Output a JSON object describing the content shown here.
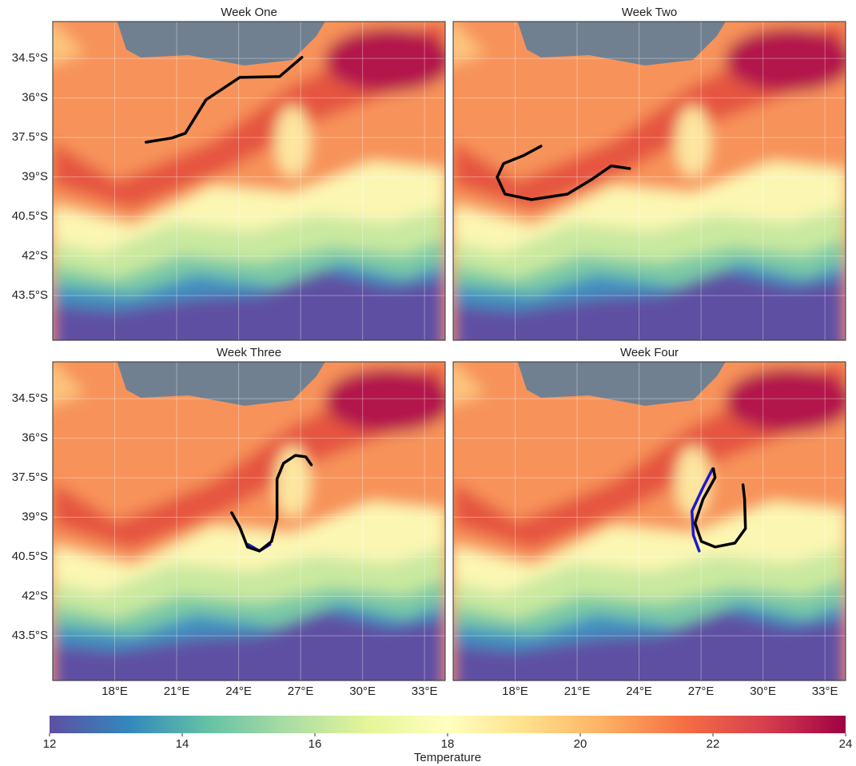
{
  "chart_data": [
    {
      "type": "map",
      "title": "Week One",
      "xlim": [
        15,
        34
      ],
      "ylim": [
        -45.2,
        -33.1
      ],
      "grid": true,
      "xtick_labels": false,
      "ytick_labels": true,
      "xticks": [
        {
          "value": 18,
          "label": "18°E"
        },
        {
          "value": 21,
          "label": "21°E"
        },
        {
          "value": 24,
          "label": "24°E"
        },
        {
          "value": 27,
          "label": "27°E"
        },
        {
          "value": 30,
          "label": "30°E"
        },
        {
          "value": 33,
          "label": "33°E"
        }
      ],
      "yticks": [
        {
          "value": -34.5,
          "label": "34.5°S"
        },
        {
          "value": -36,
          "label": "36°S"
        },
        {
          "value": -37.5,
          "label": "37.5°S"
        },
        {
          "value": -39,
          "label": "39°S"
        },
        {
          "value": -40.5,
          "label": "40.5°S"
        },
        {
          "value": -42,
          "label": "42°S"
        },
        {
          "value": -43.5,
          "label": "43.5°S"
        }
      ],
      "tracks": [
        {
          "color": "#000000",
          "x": [
            19.52,
            20.76,
            21.42,
            22.42,
            24.05,
            25.98,
            27.06
          ],
          "y": [
            -37.68,
            -37.52,
            -37.34,
            -36.07,
            -35.22,
            -35.19,
            -34.46
          ]
        }
      ]
    },
    {
      "type": "map",
      "title": "Week Two",
      "xlim": [
        15,
        34
      ],
      "ylim": [
        -45.2,
        -33.1
      ],
      "grid": true,
      "xtick_labels": false,
      "ytick_labels": false,
      "xticks": [
        {
          "value": 18,
          "label": "18°E"
        },
        {
          "value": 21,
          "label": "21°E"
        },
        {
          "value": 24,
          "label": "24°E"
        },
        {
          "value": 27,
          "label": "27°E"
        },
        {
          "value": 30,
          "label": "30°E"
        },
        {
          "value": 33,
          "label": "33°E"
        }
      ],
      "yticks": [
        {
          "value": -34.5,
          "label": "34.5°S"
        },
        {
          "value": -36,
          "label": "36°S"
        },
        {
          "value": -37.5,
          "label": "37.5°S"
        },
        {
          "value": -39,
          "label": "39°S"
        },
        {
          "value": -40.5,
          "label": "40.5°S"
        },
        {
          "value": -42,
          "label": "42°S"
        },
        {
          "value": -43.5,
          "label": "43.5°S"
        }
      ],
      "tracks": [
        {
          "color": "#000000",
          "x": [
            19.25,
            18.4,
            17.44,
            17.13,
            17.51,
            18.79,
            20.53,
            21.69,
            22.65,
            23.54
          ],
          "y": [
            -37.83,
            -38.19,
            -38.49,
            -39.01,
            -39.65,
            -39.86,
            -39.65,
            -39.1,
            -38.58,
            -38.68
          ]
        }
      ]
    },
    {
      "type": "map",
      "title": "Week Three",
      "xlim": [
        15,
        34
      ],
      "ylim": [
        -45.2,
        -33.1
      ],
      "grid": true,
      "xtick_labels": true,
      "ytick_labels": true,
      "xticks": [
        {
          "value": 18,
          "label": "18°E"
        },
        {
          "value": 21,
          "label": "21°E"
        },
        {
          "value": 24,
          "label": "24°E"
        },
        {
          "value": 27,
          "label": "27°E"
        },
        {
          "value": 30,
          "label": "30°E"
        },
        {
          "value": 33,
          "label": "33°E"
        }
      ],
      "yticks": [
        {
          "value": -34.5,
          "label": "34.5°S"
        },
        {
          "value": -36,
          "label": "36°S"
        },
        {
          "value": -37.5,
          "label": "37.5°S"
        },
        {
          "value": -39,
          "label": "39°S"
        },
        {
          "value": -40.5,
          "label": "40.5°S"
        },
        {
          "value": -42,
          "label": "42°S"
        },
        {
          "value": -43.5,
          "label": "43.5°S"
        }
      ],
      "tracks": [
        {
          "color": "#1a1acc",
          "x": [
            24.47,
            25.01,
            25.51
          ],
          "y": [
            -40.04,
            -40.28,
            -40.04
          ]
        },
        {
          "color": "#000000",
          "x": [
            23.66,
            24.05,
            24.43,
            25.01,
            25.59,
            25.86,
            25.86,
            26.17,
            26.75,
            27.25,
            27.52
          ],
          "y": [
            -38.83,
            -39.37,
            -40.13,
            -40.28,
            -39.92,
            -39.07,
            -37.55,
            -36.95,
            -36.65,
            -36.71,
            -37.01
          ]
        }
      ]
    },
    {
      "type": "map",
      "title": "Week Four",
      "xlim": [
        15,
        34
      ],
      "ylim": [
        -45.2,
        -33.1
      ],
      "grid": true,
      "xtick_labels": true,
      "ytick_labels": false,
      "xticks": [
        {
          "value": 18,
          "label": "18°E"
        },
        {
          "value": 21,
          "label": "21°E"
        },
        {
          "value": 24,
          "label": "24°E"
        },
        {
          "value": 27,
          "label": "27°E"
        },
        {
          "value": 30,
          "label": "30°E"
        },
        {
          "value": 33,
          "label": "33°E"
        }
      ],
      "yticks": [
        {
          "value": -34.5,
          "label": "34.5°S"
        },
        {
          "value": -36,
          "label": "36°S"
        },
        {
          "value": -37.5,
          "label": "37.5°S"
        },
        {
          "value": -39,
          "label": "39°S"
        },
        {
          "value": -40.5,
          "label": "40.5°S"
        },
        {
          "value": -42,
          "label": "42°S"
        },
        {
          "value": -43.5,
          "label": "43.5°S"
        }
      ],
      "tracks": [
        {
          "color": "#1a1acc",
          "x": [
            27.56,
            27.1,
            26.56,
            26.63,
            26.91
          ],
          "y": [
            -37.16,
            -37.86,
            -38.77,
            -39.68,
            -40.28
          ]
        },
        {
          "color": "#000000",
          "x": [
            27.6,
            27.68,
            27.1,
            26.71,
            27.02,
            27.68,
            28.64,
            29.15,
            29.11,
            29.03
          ],
          "y": [
            -37.16,
            -37.49,
            -38.31,
            -39.22,
            -39.92,
            -40.13,
            -39.98,
            -39.43,
            -38.31,
            -37.77
          ]
        }
      ]
    },
    {
      "type": "colorbar",
      "label": "Temperature",
      "xlim": [
        12,
        24
      ],
      "xticks": [
        12,
        14,
        16,
        18,
        20,
        22,
        24
      ],
      "colormap": [
        "#5e4fa2",
        "#3288bd",
        "#66c2a5",
        "#abdda4",
        "#e6f598",
        "#ffffbf",
        "#fee08b",
        "#fdae61",
        "#f46d43",
        "#d53e4f",
        "#9e0142"
      ]
    }
  ]
}
